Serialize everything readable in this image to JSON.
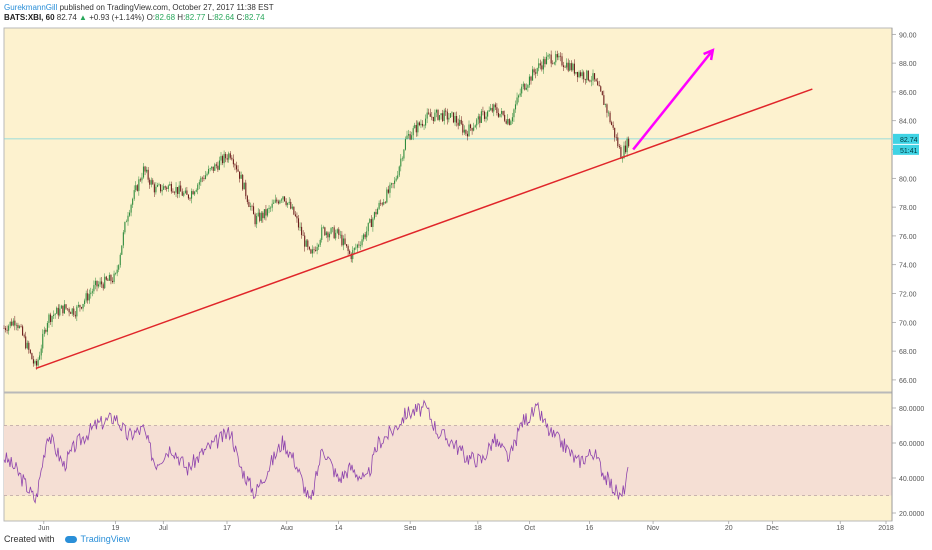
{
  "header": {
    "author": "GurekmannGill",
    "published": "published on TradingView.com, October 27, 2017 11:38 EST",
    "symbol": "BATS:XBI, 60",
    "last": "82.74",
    "change": "+0.93 (+1.14%)",
    "open_label": "O:",
    "open": "82.68",
    "high_label": "H:",
    "high": "82.77",
    "low_label": "L:",
    "low": "82.64",
    "close_label": "C:",
    "close": "82.74"
  },
  "footer": {
    "created_with": "Created with",
    "brand": "TradingView"
  },
  "chart_data": [
    {
      "type": "line",
      "panel": "price",
      "ylim": [
        65.3,
        90.3
      ],
      "y_ticks": [
        "90.00",
        "88.00",
        "86.00",
        "84.00",
        "82.00",
        "80.00",
        "78.00",
        "76.00",
        "74.00",
        "72.00",
        "70.00",
        "68.00",
        "66.00"
      ],
      "price_label": "82.74",
      "countdown_label": "51:41",
      "x_labels": [
        "Jun",
        "19",
        "Jul",
        "17",
        "Aug",
        "14",
        "Sep",
        "18",
        "Oct",
        "16",
        "Nov",
        "20",
        "Dec",
        "18",
        "2018"
      ],
      "series": [
        {
          "x": [
            "2017-05-22",
            "2017-05-25",
            "2017-05-30",
            "2017-06-02",
            "2017-06-06",
            "2017-06-09",
            "2017-06-14",
            "2017-06-19",
            "2017-06-22",
            "2017-06-26",
            "2017-06-29",
            "2017-07-03",
            "2017-07-07",
            "2017-07-11",
            "2017-07-14",
            "2017-07-18",
            "2017-07-20",
            "2017-07-24",
            "2017-07-27",
            "2017-07-31",
            "2017-08-03",
            "2017-08-07",
            "2017-08-10",
            "2017-08-14",
            "2017-08-17",
            "2017-08-21",
            "2017-08-24",
            "2017-08-28",
            "2017-08-31",
            "2017-09-05",
            "2017-09-08",
            "2017-09-12",
            "2017-09-15",
            "2017-09-19",
            "2017-09-22",
            "2017-09-26",
            "2017-09-29",
            "2017-10-03",
            "2017-10-06",
            "2017-10-10",
            "2017-10-13",
            "2017-10-17",
            "2017-10-20",
            "2017-10-24",
            "2017-10-26"
          ],
          "y": [
            69.6,
            70.2,
            66.8,
            70.3,
            71.0,
            70.8,
            72.5,
            73.1,
            77.6,
            80.6,
            79.2,
            79.5,
            78.7,
            80.1,
            80.8,
            81.8,
            80.4,
            77.1,
            77.6,
            78.9,
            77.4,
            74.5,
            76.4,
            76.1,
            74.6,
            76.3,
            78.0,
            79.6,
            82.8,
            84.2,
            84.4,
            84.2,
            83.2,
            84.3,
            84.8,
            84.0,
            86.2,
            87.7,
            88.4,
            88.0,
            87.4,
            86.9,
            85.1,
            81.6,
            82.7
          ]
        }
      ],
      "annotations": [
        {
          "type": "trendline",
          "color": "#e0262a",
          "from": [
            "2017-05-30",
            66.8
          ],
          "to": [
            "2017-12-11",
            86.2
          ]
        },
        {
          "type": "arrow",
          "color": "#ff00ff",
          "from": [
            "2017-10-27",
            82.0
          ],
          "to": [
            "2017-11-16",
            88.9
          ]
        },
        {
          "type": "hline",
          "color": "#7ad6df",
          "y": 82.74
        }
      ]
    },
    {
      "type": "line",
      "panel": "rsi",
      "ylim": [
        16,
        88
      ],
      "y_ticks": [
        "80.0000",
        "60.0000",
        "40.0000",
        "20.0000"
      ],
      "band": [
        30,
        70
      ],
      "series": [
        {
          "x": [
            "2017-05-22",
            "2017-05-25",
            "2017-05-30",
            "2017-06-02",
            "2017-06-06",
            "2017-06-09",
            "2017-06-14",
            "2017-06-19",
            "2017-06-22",
            "2017-06-26",
            "2017-06-29",
            "2017-07-03",
            "2017-07-07",
            "2017-07-11",
            "2017-07-14",
            "2017-07-18",
            "2017-07-20",
            "2017-07-24",
            "2017-07-27",
            "2017-07-31",
            "2017-08-03",
            "2017-08-07",
            "2017-08-10",
            "2017-08-14",
            "2017-08-17",
            "2017-08-21",
            "2017-08-24",
            "2017-08-28",
            "2017-08-31",
            "2017-09-05",
            "2017-09-08",
            "2017-09-12",
            "2017-09-15",
            "2017-09-19",
            "2017-09-22",
            "2017-09-26",
            "2017-09-29",
            "2017-10-03",
            "2017-10-06",
            "2017-10-10",
            "2017-10-13",
            "2017-10-17",
            "2017-10-20",
            "2017-10-24",
            "2017-10-26"
          ],
          "y": [
            52,
            45,
            27,
            66,
            47,
            59,
            70,
            75,
            64,
            68,
            48,
            58,
            45,
            55,
            60,
            67,
            48,
            31,
            44,
            61,
            50,
            25,
            58,
            39,
            46,
            38,
            60,
            68,
            77,
            80,
            66,
            60,
            52,
            50,
            62,
            51,
            72,
            79,
            66,
            58,
            49,
            55,
            41,
            28,
            45
          ]
        }
      ]
    }
  ],
  "colors": {
    "plot_bg": "#fdf2cf",
    "rsi_band": "#f5dfd4",
    "up_candle": "#2e8b3c",
    "down_candle": "#6b1b1b",
    "rsi_line": "#8e44ad",
    "trendline": "#e0262a",
    "arrow": "#ff00ff",
    "price_line": "#7ad6df"
  }
}
